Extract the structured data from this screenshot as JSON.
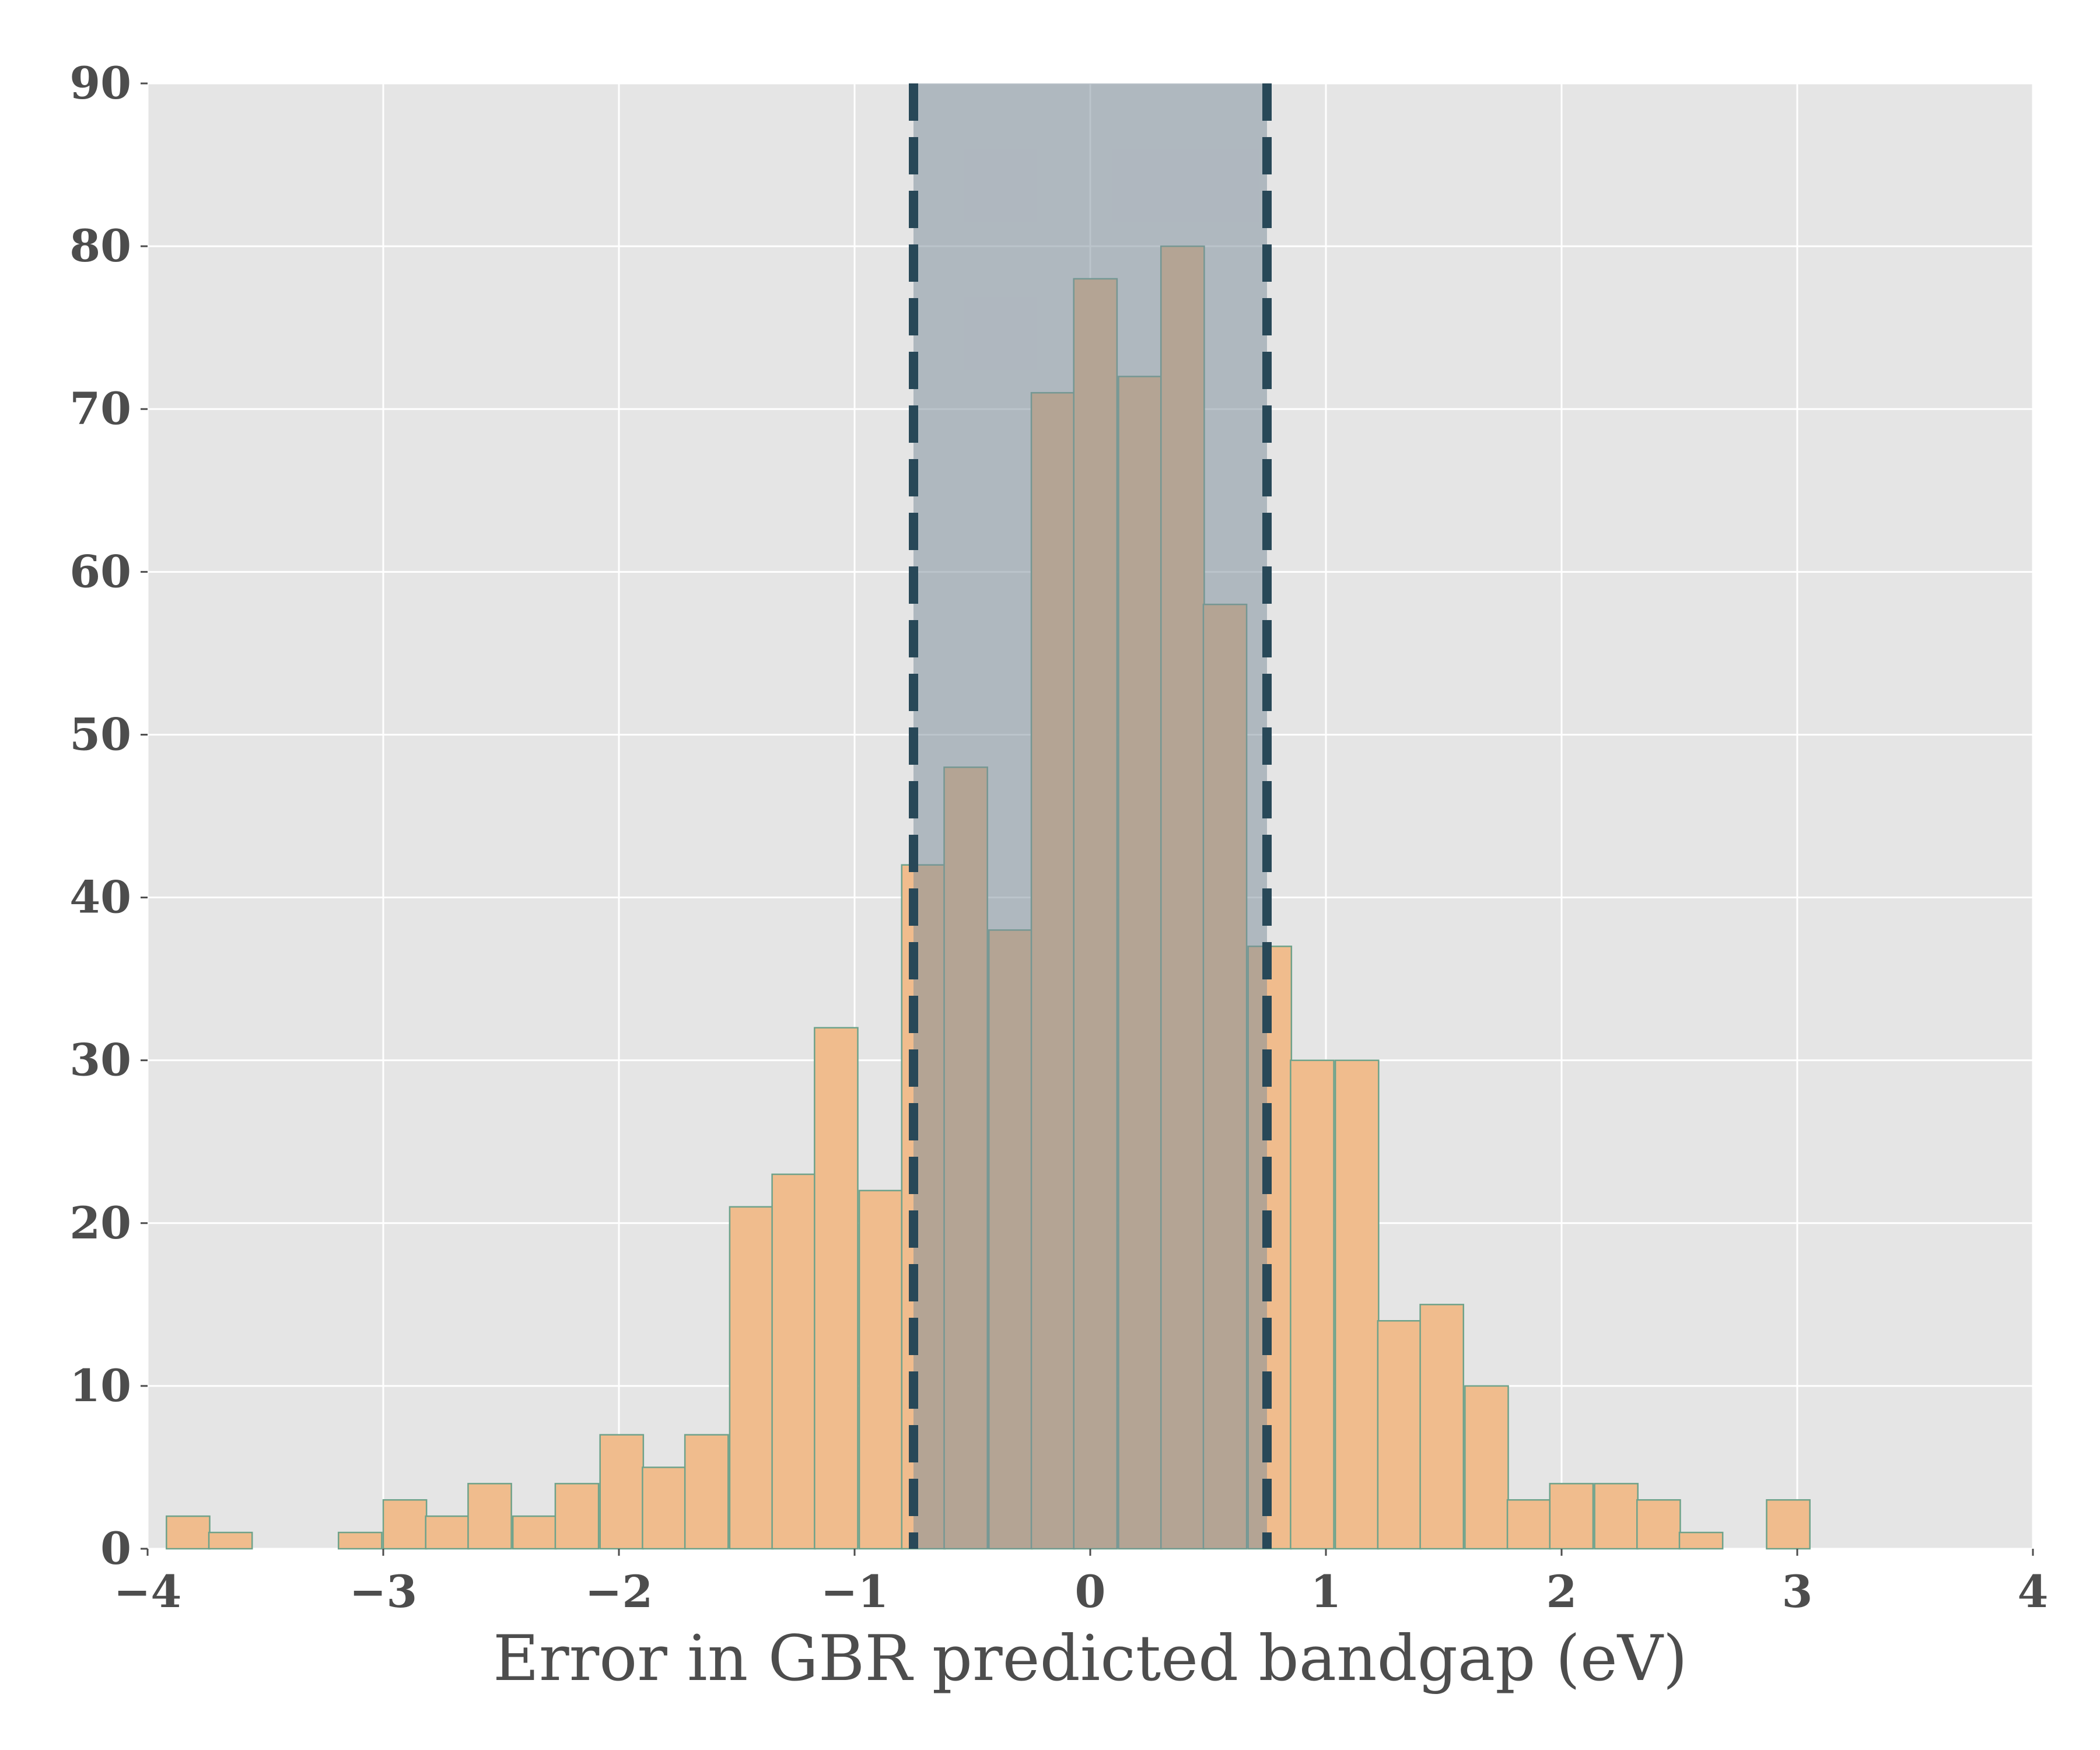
{
  "chart_data": {
    "type": "bar",
    "title": "",
    "xlabel": "Error in GBR predicted bandgap (eV)",
    "ylabel": "",
    "xlim": [
      -4,
      4
    ],
    "ylim": [
      0,
      90
    ],
    "xticks": [
      -4,
      -3,
      -2,
      -1,
      0,
      1,
      2,
      3,
      4
    ],
    "xtick_labels": [
      "−4",
      "−3",
      "−2",
      "−1",
      "0",
      "1",
      "2",
      "3",
      "4"
    ],
    "yticks": [
      0,
      10,
      20,
      30,
      40,
      50,
      60,
      70,
      80,
      90
    ],
    "ytick_labels": [
      "0",
      "10",
      "20",
      "30",
      "40",
      "50",
      "60",
      "70",
      "80",
      "90"
    ],
    "grid": true,
    "bin_width": 0.1836,
    "bin_left_edges": [
      -3.92,
      -3.74,
      -3.55,
      -3.37,
      -3.19,
      -3.0,
      -2.82,
      -2.64,
      -2.45,
      -2.27,
      -2.08,
      -1.9,
      -1.72,
      -1.53,
      -1.35,
      -1.17,
      -0.98,
      -0.8,
      -0.62,
      -0.43,
      -0.25,
      -0.07,
      0.12,
      0.3,
      0.48,
      0.67,
      0.85,
      1.04,
      1.22,
      1.4,
      1.59,
      1.77,
      1.95,
      2.14,
      2.32,
      2.5,
      2.69,
      2.87
    ],
    "values": [
      2,
      1,
      0,
      0,
      1,
      3,
      2,
      4,
      2,
      4,
      7,
      5,
      7,
      21,
      23,
      32,
      22,
      42,
      48,
      38,
      71,
      78,
      72,
      80,
      58,
      37,
      30,
      30,
      14,
      15,
      10,
      3,
      4,
      4,
      3,
      1,
      0,
      3
    ],
    "shaded_interval": [
      -0.75,
      0.75
    ],
    "dashed_lines_x": [
      -0.75,
      0.75
    ],
    "colors": {
      "bar_fill": "#f0bc8d",
      "bar_edge": "#6ea28a",
      "shade": "#7d8d9c",
      "dashed_line": "#284858",
      "panel_bg": "#e5e5e5",
      "grid": "#ffffff",
      "text": "#4d4d4d"
    }
  }
}
